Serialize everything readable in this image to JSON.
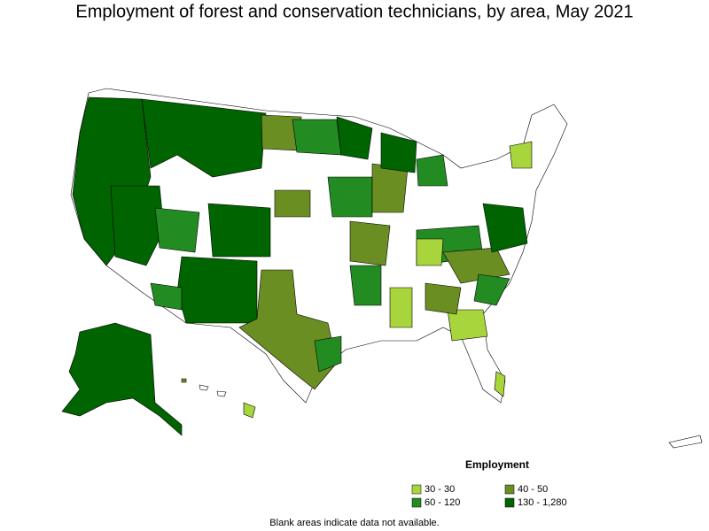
{
  "title": "Employment of forest and conservation technicians, by area, May 2021",
  "legend": {
    "title": "Employment",
    "items": [
      {
        "label": "30 - 30",
        "color": "#a8d43c"
      },
      {
        "label": "40 - 50",
        "color": "#6b8e23"
      },
      {
        "label": "60 - 120",
        "color": "#228b22"
      },
      {
        "label": "130 - 1,280",
        "color": "#006400"
      }
    ]
  },
  "note": "Blank areas indicate data not available."
}
